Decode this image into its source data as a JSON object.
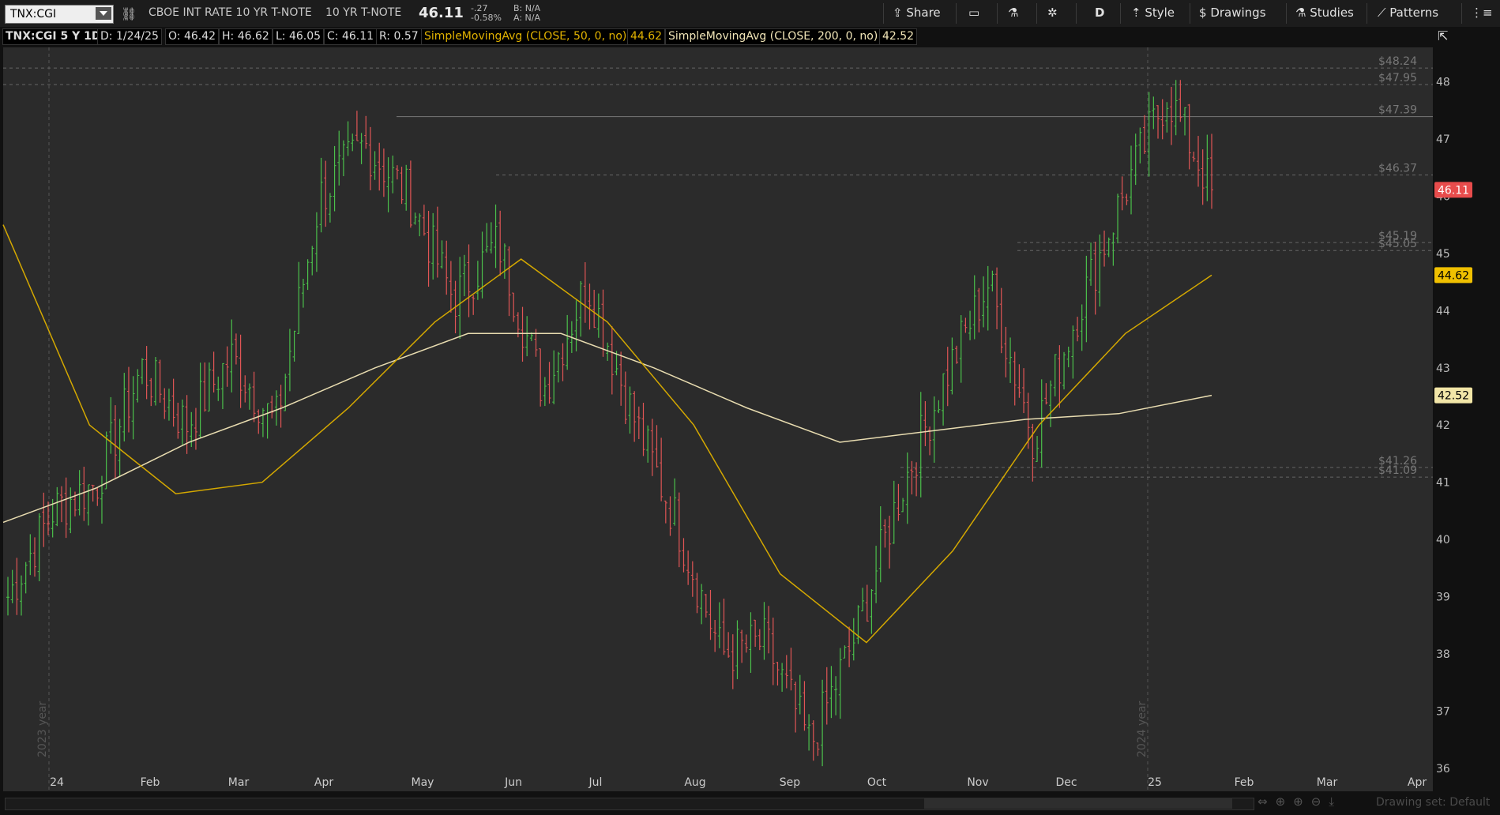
{
  "toolbar": {
    "symbol": "TNX:CGI",
    "description": "CBOE INT RATE 10 YR T-NOTE",
    "short_name": "10 YR T-NOTE",
    "last": "46.11",
    "change": "-.27",
    "change_pct": "-0.58%",
    "bid": "B: N/A",
    "ask": "A: N/A",
    "share": "Share",
    "aggregation": "D",
    "style": "Style",
    "drawings": "Drawings",
    "studies": "Studies",
    "patterns": "Patterns"
  },
  "info": {
    "symbol_period": "TNX:CGI 5 Y 1D",
    "date": "D: 1/24/25",
    "open": "O: 46.42",
    "high": "H: 46.62",
    "low": "L: 46.05",
    "close": "C: 46.11",
    "range": "R: 0.57",
    "sma50_label": "SimpleMovingAvg (CLOSE, 50, 0, no)",
    "sma50_value": "44.62",
    "sma200_label": "SimpleMovingAvg (CLOSE, 200, 0, no)",
    "sma200_value": "42.52"
  },
  "footer": {
    "drawing_set": "Drawing set: Default"
  },
  "colors": {
    "up": "#4bc04b",
    "down": "#e05555",
    "sma50": "#d4a800",
    "sma200": "#e8dcb0",
    "last_bubble": "#e84c4c",
    "sma50_bubble": "#f0c000",
    "sma200_bubble": "#f2e6a8"
  },
  "chart_data": {
    "type": "ohlc",
    "title": "TNX:CGI 5 Y 1D",
    "x_ticks": [
      "24",
      "Feb",
      "Mar",
      "Apr",
      "May",
      "Jun",
      "Jul",
      "Aug",
      "Sep",
      "Oct",
      "Nov",
      "Dec",
      "25",
      "Feb",
      "Mar",
      "Apr"
    ],
    "y_ticks": [
      36,
      37,
      38,
      39,
      40,
      41,
      42,
      43,
      44,
      45,
      46,
      47,
      48
    ],
    "ylim": [
      35.6,
      48.6
    ],
    "year_watermarks": [
      "2023 year",
      "2024 year"
    ],
    "price_levels": [
      48.24,
      47.95,
      47.39,
      46.37,
      45.19,
      45.05,
      41.26,
      41.09
    ],
    "current_price": 46.11,
    "sma50_current": 44.62,
    "sma200_current": 42.52,
    "ohlc_monthly_pivots": [
      {
        "t": "24",
        "c": 39.0
      },
      {
        "t": "Jan-mid",
        "c": 40.5
      },
      {
        "t": "Feb",
        "c": 41.0
      },
      {
        "t": "Feb-mid",
        "c": 43.0
      },
      {
        "t": "Mar",
        "c": 42.0
      },
      {
        "t": "Mar-mid",
        "c": 43.2
      },
      {
        "t": "Apr",
        "c": 42.0
      },
      {
        "t": "Apr-mid",
        "c": 46.0
      },
      {
        "t": "Apr-end",
        "c": 46.9
      },
      {
        "t": "May",
        "c": 46.0
      },
      {
        "t": "May-mid",
        "c": 44.2
      },
      {
        "t": "Jun",
        "c": 45.2
      },
      {
        "t": "Jun-mid",
        "c": 42.6
      },
      {
        "t": "Jul",
        "c": 44.5
      },
      {
        "t": "Jul-mid",
        "c": 42.2
      },
      {
        "t": "Aug",
        "c": 40.3
      },
      {
        "t": "Aug-mid",
        "c": 38.0
      },
      {
        "t": "Sep",
        "c": 38.2
      },
      {
        "t": "Sep-mid",
        "c": 36.4
      },
      {
        "t": "Oct",
        "c": 38.3
      },
      {
        "t": "Oct-mid",
        "c": 40.8
      },
      {
        "t": "Nov",
        "c": 42.8
      },
      {
        "t": "Nov-mid",
        "c": 44.5
      },
      {
        "t": "Dec",
        "c": 41.8
      },
      {
        "t": "Dec-mid",
        "c": 44.0
      },
      {
        "t": "25",
        "c": 46.0
      },
      {
        "t": "Jan-mid",
        "c": 47.8
      },
      {
        "t": "Jan-24",
        "c": 46.11
      }
    ],
    "sma50_path": [
      {
        "t": "23-Dec",
        "v": 45.5
      },
      {
        "t": "Jan-mid",
        "v": 42.0
      },
      {
        "t": "Feb",
        "v": 40.8
      },
      {
        "t": "Mar",
        "v": 41.0
      },
      {
        "t": "Apr",
        "v": 42.3
      },
      {
        "t": "May",
        "v": 43.8
      },
      {
        "t": "Jun",
        "v": 44.9
      },
      {
        "t": "Jul",
        "v": 43.8
      },
      {
        "t": "Aug",
        "v": 42.0
      },
      {
        "t": "Sep",
        "v": 39.4
      },
      {
        "t": "Oct",
        "v": 38.2
      },
      {
        "t": "Nov",
        "v": 39.8
      },
      {
        "t": "Dec",
        "v": 42.0
      },
      {
        "t": "25",
        "v": 43.6
      },
      {
        "t": "Jan-24",
        "v": 44.62
      }
    ],
    "sma200_path": [
      {
        "t": "23-Dec",
        "v": 40.3
      },
      {
        "t": "Feb",
        "v": 40.9
      },
      {
        "t": "Mar",
        "v": 41.7
      },
      {
        "t": "Apr",
        "v": 42.3
      },
      {
        "t": "May",
        "v": 43.0
      },
      {
        "t": "Jun",
        "v": 43.6
      },
      {
        "t": "Jul",
        "v": 43.6
      },
      {
        "t": "Aug",
        "v": 43.0
      },
      {
        "t": "Sep",
        "v": 42.3
      },
      {
        "t": "Oct",
        "v": 41.7
      },
      {
        "t": "Nov",
        "v": 41.9
      },
      {
        "t": "Dec",
        "v": 42.1
      },
      {
        "t": "25",
        "v": 42.2
      },
      {
        "t": "Jan-24",
        "v": 42.52
      }
    ]
  }
}
